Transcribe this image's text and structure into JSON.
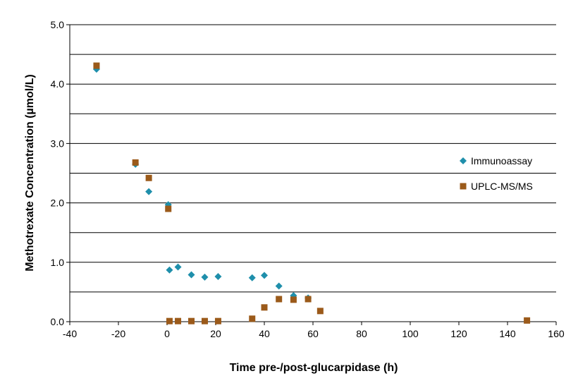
{
  "chart_data": {
    "type": "scatter",
    "xlabel": "Time pre-/post-glucarpidase  (h)",
    "ylabel": "Methotrexate Concentration (µmol/L)",
    "xlim": [
      -40,
      160
    ],
    "ylim": [
      0,
      5
    ],
    "x_ticks": [
      "-40",
      "-20",
      "0",
      "20",
      "40",
      "60",
      "80",
      "100",
      "120",
      "140",
      "160"
    ],
    "y_ticks": [
      "0.0",
      "1.0",
      "2.0",
      "3.0",
      "4.0",
      "5.0"
    ],
    "grid": "horizontal",
    "legend_position": "right",
    "series": [
      {
        "name": "Immunoassay",
        "marker": "diamond",
        "color": "#1f8fab",
        "points": [
          {
            "x": -29,
            "y": 4.25
          },
          {
            "x": -13,
            "y": 2.65
          },
          {
            "x": -7.5,
            "y": 2.19
          },
          {
            "x": 0.5,
            "y": 1.97
          },
          {
            "x": 1,
            "y": 0.87
          },
          {
            "x": 4.5,
            "y": 0.92
          },
          {
            "x": 10,
            "y": 0.79
          },
          {
            "x": 15.5,
            "y": 0.75
          },
          {
            "x": 21,
            "y": 0.76
          },
          {
            "x": 35,
            "y": 0.74
          },
          {
            "x": 40,
            "y": 0.78
          },
          {
            "x": 46,
            "y": 0.6
          },
          {
            "x": 52,
            "y": 0.44
          },
          {
            "x": 58,
            "y": 0.4
          }
        ]
      },
      {
        "name": "UPLC-MS/MS",
        "marker": "square",
        "color": "#9b5a1a",
        "points": [
          {
            "x": -29,
            "y": 4.31
          },
          {
            "x": -13,
            "y": 2.68
          },
          {
            "x": -7.5,
            "y": 2.42
          },
          {
            "x": 0.5,
            "y": 1.9
          },
          {
            "x": 1,
            "y": 0.01
          },
          {
            "x": 4.5,
            "y": 0.01
          },
          {
            "x": 10,
            "y": 0.01
          },
          {
            "x": 15.5,
            "y": 0.01
          },
          {
            "x": 21,
            "y": 0.01
          },
          {
            "x": 35,
            "y": 0.05
          },
          {
            "x": 40,
            "y": 0.24
          },
          {
            "x": 46,
            "y": 0.38
          },
          {
            "x": 52,
            "y": 0.37
          },
          {
            "x": 58,
            "y": 0.38
          },
          {
            "x": 63,
            "y": 0.18
          },
          {
            "x": 148,
            "y": 0.02
          }
        ]
      }
    ]
  }
}
